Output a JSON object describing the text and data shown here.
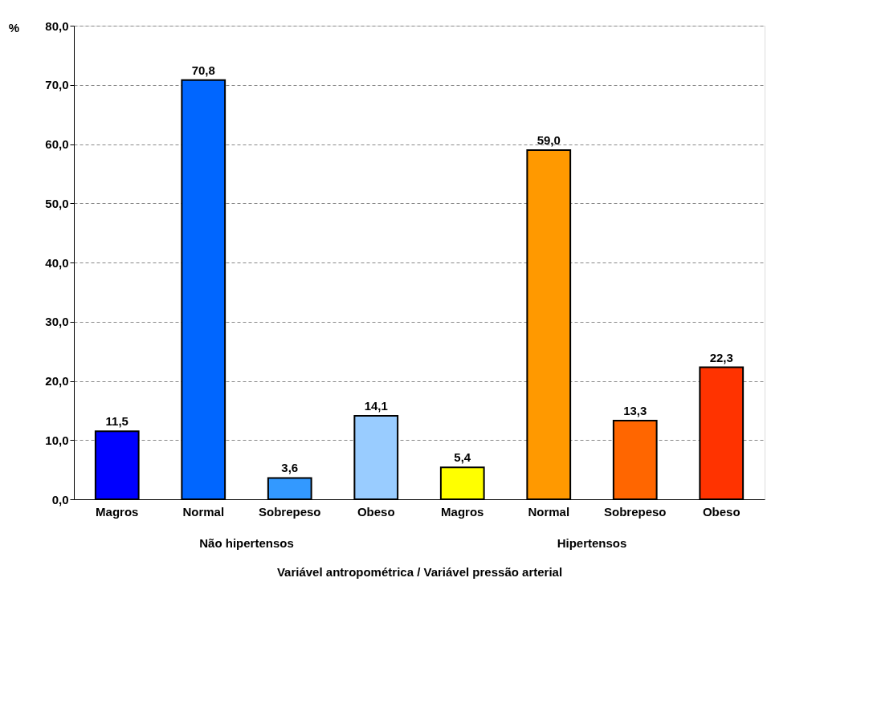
{
  "chart_data": {
    "type": "bar",
    "categories": [
      "Magros",
      "Normal",
      "Sobrepeso",
      "Obeso",
      "Magros",
      "Normal",
      "Sobrepeso",
      "Obeso"
    ],
    "values": [
      11.5,
      70.8,
      3.6,
      14.1,
      5.4,
      59.0,
      13.3,
      22.3
    ],
    "colors": [
      "#0000ff",
      "#0066ff",
      "#3399ff",
      "#99ccff",
      "#ffff00",
      "#ff9900",
      "#ff6600",
      "#ff3300"
    ],
    "xlabel": "Variável antropométrica / Variável pressão arterial",
    "ylabel": "%",
    "annotations": [
      "Não hipertensos",
      "Hipertensos"
    ],
    "ylim": [
      0,
      80
    ],
    "yticks": [
      {
        "value": 0,
        "label": "0,0"
      },
      {
        "value": 10,
        "label": "10,0"
      },
      {
        "value": 20,
        "label": "20,0"
      },
      {
        "value": 30,
        "label": "30,0"
      },
      {
        "value": 40,
        "label": "40,0"
      },
      {
        "value": 50,
        "label": "50,0"
      },
      {
        "value": 60,
        "label": "60,0"
      },
      {
        "value": 70,
        "label": "70,0"
      },
      {
        "value": 80,
        "label": "80,0"
      }
    ],
    "value_labels": [
      "11,5",
      "70,8",
      "3,6",
      "14,1",
      "5,4",
      "59,0",
      "13,3",
      "22,3"
    ],
    "grid": "y"
  }
}
